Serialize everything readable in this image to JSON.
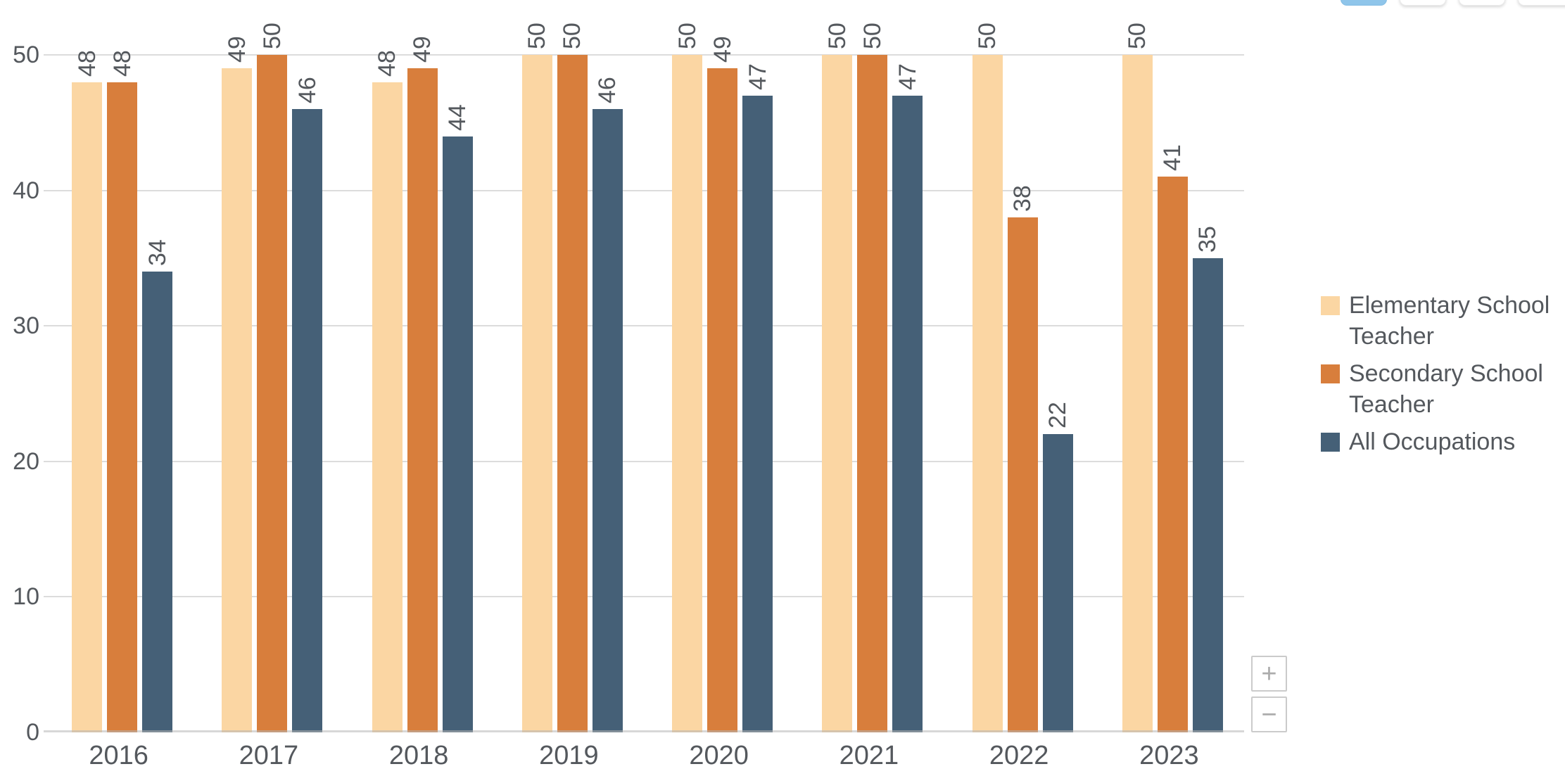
{
  "toolbar": {
    "active_color": "#8fc5ea",
    "buttons": [
      {
        "name": "toolbar-button-1",
        "active": true
      },
      {
        "name": "toolbar-button-2",
        "active": false
      },
      {
        "name": "toolbar-button-3",
        "active": false
      },
      {
        "name": "toolbar-button-4",
        "active": false
      }
    ]
  },
  "chart_data": {
    "type": "bar",
    "categories": [
      "2016",
      "2017",
      "2018",
      "2019",
      "2020",
      "2021",
      "2022",
      "2023"
    ],
    "series": [
      {
        "name": "Elementary School Teacher",
        "color": "#fbd6a3",
        "values": [
          48,
          49,
          48,
          50,
          50,
          50,
          50,
          50
        ]
      },
      {
        "name": "Secondary School Teacher",
        "color": "#d87e3c",
        "values": [
          48,
          50,
          49,
          50,
          49,
          50,
          38,
          41
        ]
      },
      {
        "name": "All Occupations",
        "color": "#456077",
        "values": [
          34,
          46,
          44,
          46,
          47,
          47,
          22,
          35
        ]
      }
    ],
    "title": "",
    "xlabel": "",
    "ylabel": "",
    "ylim": [
      0,
      50
    ],
    "yticks": [
      0,
      10,
      20,
      30,
      40,
      50
    ],
    "grid": true,
    "legend_position": "right",
    "value_labels": "rotated-90-above-bars",
    "text_color": "#54585d",
    "grid_color": "#dcdcdc",
    "axis_color": "#b6b6b6"
  },
  "zoom_controls": {
    "zoom_in_label": "+",
    "zoom_out_label": "−"
  }
}
